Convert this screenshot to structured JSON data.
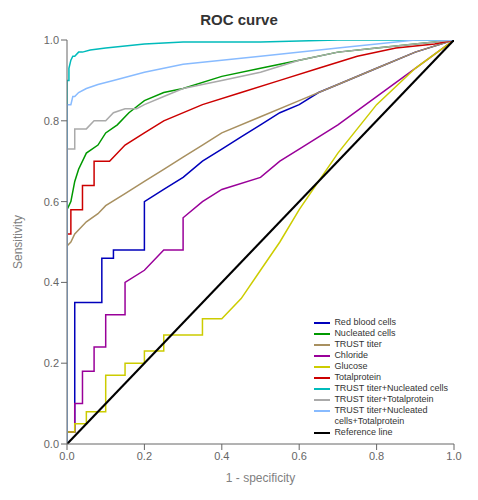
{
  "chart_data": {
    "type": "line",
    "title": "ROC curve",
    "x_label": "1 - specificity",
    "y_label": "Sensitivity",
    "xlim": [
      0.0,
      1.0
    ],
    "ylim": [
      0.0,
      1.0
    ],
    "xticks": [
      {
        "value": 0.0,
        "label": "0.0"
      },
      0.2,
      0.4,
      0.6,
      0.8,
      {
        "value": 1.0,
        "label": "1.0"
      }
    ],
    "yticks": [
      {
        "value": 0.0,
        "label": "0.0"
      },
      0.2,
      0.4,
      0.6,
      0.8,
      {
        "value": 1.0,
        "label": "1.0"
      }
    ],
    "legend": "lower right",
    "series": [
      {
        "name": "Red blood cells",
        "color": "#0000BB",
        "x": [
          0.0,
          0.0,
          0.02,
          0.02,
          0.09,
          0.09,
          0.12,
          0.12,
          0.2,
          0.2,
          0.25,
          0.3,
          0.35,
          0.4,
          0.45,
          0.5,
          0.55,
          0.6,
          0.65,
          0.7,
          0.8,
          0.9,
          1.0
        ],
        "values": [
          0.0,
          0.03,
          0.03,
          0.35,
          0.35,
          0.46,
          0.46,
          0.48,
          0.48,
          0.6,
          0.63,
          0.66,
          0.7,
          0.73,
          0.76,
          0.79,
          0.82,
          0.84,
          0.87,
          0.89,
          0.93,
          0.97,
          1.0
        ]
      },
      {
        "name": "Nucleated cells",
        "color": "#009900",
        "x": [
          0.0,
          0.0,
          0.01,
          0.02,
          0.03,
          0.05,
          0.08,
          0.1,
          0.13,
          0.16,
          0.2,
          0.25,
          0.3,
          0.4,
          0.5,
          0.6,
          0.7,
          0.8,
          0.9,
          1.0
        ],
        "values": [
          0.0,
          0.58,
          0.6,
          0.65,
          0.68,
          0.72,
          0.74,
          0.77,
          0.79,
          0.82,
          0.85,
          0.87,
          0.88,
          0.91,
          0.93,
          0.95,
          0.97,
          0.98,
          0.99,
          1.0
        ]
      },
      {
        "name": "TRUST titer",
        "color": "#A89060",
        "x": [
          0.0,
          0.0,
          0.01,
          0.02,
          0.05,
          0.08,
          0.1,
          0.15,
          0.2,
          0.25,
          0.3,
          0.35,
          0.4,
          0.5,
          0.6,
          0.7,
          0.8,
          0.9,
          1.0
        ],
        "values": [
          0.0,
          0.49,
          0.5,
          0.52,
          0.55,
          0.57,
          0.59,
          0.62,
          0.65,
          0.68,
          0.71,
          0.74,
          0.77,
          0.81,
          0.85,
          0.89,
          0.93,
          0.97,
          1.0
        ]
      },
      {
        "name": "Chloride",
        "color": "#990099",
        "x": [
          0.0,
          0.0,
          0.02,
          0.02,
          0.04,
          0.04,
          0.07,
          0.07,
          0.1,
          0.1,
          0.15,
          0.15,
          0.2,
          0.25,
          0.3,
          0.3,
          0.35,
          0.4,
          0.5,
          0.55,
          0.6,
          0.7,
          0.8,
          0.9,
          1.0
        ],
        "values": [
          0.0,
          0.03,
          0.03,
          0.1,
          0.1,
          0.18,
          0.18,
          0.24,
          0.24,
          0.32,
          0.32,
          0.4,
          0.43,
          0.48,
          0.48,
          0.56,
          0.6,
          0.63,
          0.66,
          0.7,
          0.73,
          0.79,
          0.86,
          0.93,
          1.0
        ]
      },
      {
        "name": "Glucose",
        "color": "#CCCC00",
        "x": [
          0.0,
          0.0,
          0.02,
          0.02,
          0.05,
          0.05,
          0.08,
          0.1,
          0.1,
          0.15,
          0.15,
          0.2,
          0.2,
          0.25,
          0.25,
          0.3,
          0.35,
          0.35,
          0.4,
          0.45,
          0.5,
          0.55,
          0.6,
          0.65,
          0.7,
          0.8,
          0.9,
          1.0
        ],
        "values": [
          0.0,
          0.03,
          0.03,
          0.05,
          0.05,
          0.08,
          0.08,
          0.08,
          0.17,
          0.17,
          0.2,
          0.2,
          0.23,
          0.23,
          0.27,
          0.27,
          0.27,
          0.31,
          0.31,
          0.36,
          0.43,
          0.5,
          0.58,
          0.65,
          0.72,
          0.84,
          0.93,
          1.0
        ]
      },
      {
        "name": "Totalprotein",
        "color": "#CC0000",
        "x": [
          0.0,
          0.0,
          0.01,
          0.01,
          0.04,
          0.04,
          0.07,
          0.07,
          0.11,
          0.15,
          0.2,
          0.25,
          0.35,
          0.45,
          0.55,
          0.65,
          0.75,
          0.85,
          0.95,
          1.0
        ],
        "values": [
          0.0,
          0.52,
          0.52,
          0.58,
          0.58,
          0.64,
          0.64,
          0.7,
          0.7,
          0.74,
          0.77,
          0.8,
          0.84,
          0.87,
          0.9,
          0.93,
          0.96,
          0.98,
          0.99,
          1.0
        ]
      },
      {
        "name": "TRUST titer+Nucleated cells",
        "color": "#00BBBB",
        "x": [
          0.0,
          0.0,
          0.005,
          0.005,
          0.01,
          0.015,
          0.02,
          0.03,
          0.04,
          0.06,
          0.1,
          0.2,
          0.3,
          0.5,
          0.7,
          0.9,
          1.0
        ],
        "values": [
          0.0,
          0.9,
          0.9,
          0.93,
          0.95,
          0.96,
          0.96,
          0.97,
          0.97,
          0.975,
          0.98,
          0.99,
          0.995,
          0.995,
          1.0,
          1.0,
          1.0
        ]
      },
      {
        "name": "TRUST titer+Totalprotein",
        "color": "#AAAAAA",
        "x": [
          0.0,
          0.0,
          0.02,
          0.02,
          0.05,
          0.07,
          0.1,
          0.12,
          0.15,
          0.18,
          0.2,
          0.25,
          0.3,
          0.4,
          0.5,
          0.6,
          0.7,
          0.8,
          0.9,
          1.0
        ],
        "values": [
          0.0,
          0.73,
          0.73,
          0.78,
          0.78,
          0.8,
          0.8,
          0.82,
          0.83,
          0.83,
          0.84,
          0.86,
          0.88,
          0.9,
          0.92,
          0.95,
          0.97,
          0.98,
          0.99,
          1.0
        ]
      },
      {
        "name": "TRUST titer+Nucleated\ncells+Totalprotein",
        "color": "#88BBFF",
        "x": [
          0.0,
          0.0,
          0.01,
          0.015,
          0.02,
          0.03,
          0.05,
          0.08,
          0.12,
          0.2,
          0.3,
          0.5,
          0.7,
          0.9,
          1.0
        ],
        "values": [
          0.0,
          0.84,
          0.84,
          0.86,
          0.86,
          0.87,
          0.88,
          0.89,
          0.9,
          0.92,
          0.94,
          0.96,
          0.98,
          1.0,
          1.0
        ]
      },
      {
        "name": "Reference line",
        "color": "#000000",
        "x": [
          0,
          1
        ],
        "values": [
          0,
          1
        ]
      }
    ]
  }
}
